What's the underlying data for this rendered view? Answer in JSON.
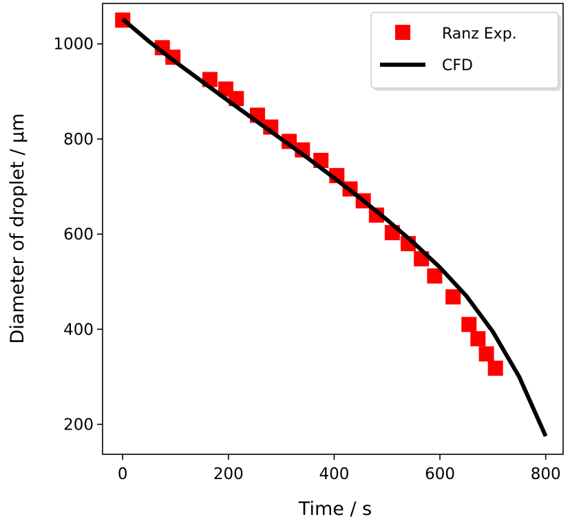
{
  "chart_data": {
    "type": "scatter",
    "title": "",
    "xlabel": "Time / s",
    "ylabel": "Diameter of droplet / µm",
    "xlim": [
      -38,
      833
    ],
    "ylim": [
      137,
      1085
    ],
    "xticks": [
      0,
      200,
      400,
      600,
      800
    ],
    "yticks": [
      200,
      400,
      600,
      800,
      1000
    ],
    "grid": false,
    "legend": {
      "placement": "top-right"
    },
    "series": [
      {
        "name": "Ranz Exp.",
        "kind": "scatter",
        "marker": "square",
        "color": "#ff0000",
        "x": [
          0,
          75,
          95,
          165,
          195,
          215,
          255,
          280,
          315,
          340,
          375,
          405,
          430,
          455,
          480,
          510,
          540,
          565,
          590,
          625,
          655,
          672,
          688,
          705
        ],
        "y": [
          1050,
          992,
          972,
          925,
          905,
          885,
          850,
          825,
          795,
          777,
          755,
          723,
          695,
          670,
          640,
          603,
          580,
          548,
          512,
          468,
          410,
          380,
          348,
          318
        ]
      },
      {
        "name": "CFD",
        "kind": "line",
        "color": "#000000",
        "x": [
          0,
          50,
          100,
          150,
          200,
          250,
          300,
          350,
          400,
          450,
          500,
          550,
          600,
          650,
          700,
          750,
          800
        ],
        "y": [
          1052,
          1005,
          962,
          921,
          880,
          840,
          800,
          760,
          718,
          675,
          630,
          582,
          530,
          470,
          395,
          300,
          175
        ]
      }
    ]
  }
}
